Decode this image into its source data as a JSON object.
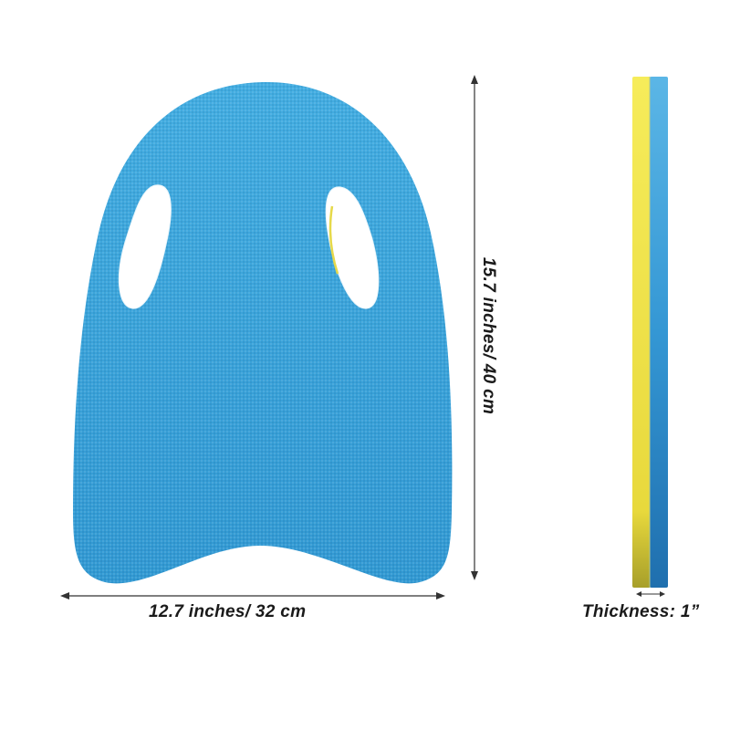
{
  "product": {
    "name": "kickboard",
    "colors": {
      "board_blue": "#3aa3d9",
      "foam_yellow": "#f3e24a",
      "foam_blue": "#2f8fd0"
    }
  },
  "dimensions": {
    "width_label": "12.7 inches/ 32 cm",
    "height_label": "15.7 inches/ 40 cm",
    "thickness_label": "Thickness: 1”"
  }
}
